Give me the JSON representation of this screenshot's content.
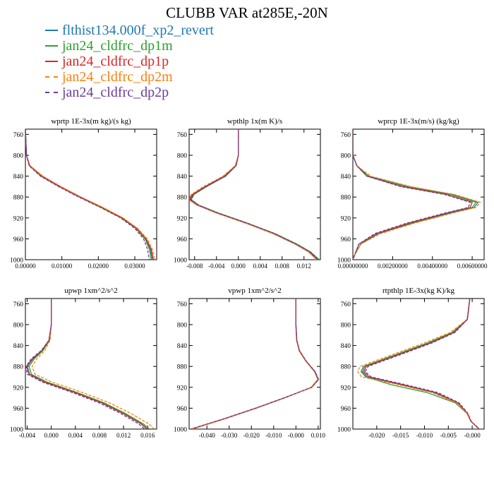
{
  "figure": {
    "title": "CLUBB VAR at285E,-20N",
    "legend": [
      {
        "label": "flthist134.000f_xp2_revert",
        "color": "#1f77b4",
        "dash": "solid"
      },
      {
        "label": "jan24_cldfrc_dp1m",
        "color": "#2ca02c",
        "dash": "solid"
      },
      {
        "label": "jan24_cldfrc_dp1p",
        "color": "#d62728",
        "dash": "solid"
      },
      {
        "label": "jan24_cldfrc_dp2m",
        "color": "#ff7f0e",
        "dash": "dashed"
      },
      {
        "label": "jan24_cldfrc_dp2p",
        "color": "#6a3d9a",
        "dash": "dashed"
      }
    ]
  },
  "chart_data": [
    {
      "type": "line",
      "title": "wprtp  1E-3x(m kg)/(s kg)",
      "xlim": [
        0.0,
        0.036
      ],
      "ylim": [
        750,
        1000
      ],
      "y_reversed": true,
      "xticks": [
        0.0,
        0.01,
        0.02,
        0.03
      ],
      "xtick_labels": [
        "0.00000",
        "0.01000",
        "0.02000",
        "0.03000"
      ],
      "yticks": [
        760,
        800,
        840,
        880,
        920,
        960,
        1000
      ],
      "ytick_labels": [
        "760",
        "800",
        "840",
        "880",
        "920",
        "960",
        "1000"
      ],
      "y": [
        750,
        800,
        820,
        840,
        860,
        880,
        900,
        920,
        940,
        960,
        980,
        1000
      ],
      "series": [
        {
          "x": [
            0.0,
            0.0003,
            0.0012,
            0.0045,
            0.0095,
            0.015,
            0.021,
            0.0265,
            0.0305,
            0.033,
            0.0343,
            0.0348
          ]
        },
        {
          "x": [
            0.0,
            0.0003,
            0.0011,
            0.0043,
            0.0093,
            0.0148,
            0.0208,
            0.0263,
            0.0303,
            0.0328,
            0.034,
            0.0345
          ]
        },
        {
          "x": [
            0.0,
            0.0003,
            0.0012,
            0.0046,
            0.0096,
            0.0151,
            0.0211,
            0.0266,
            0.0306,
            0.0331,
            0.0345,
            0.0351
          ]
        },
        {
          "x": [
            0.0,
            0.0003,
            0.0013,
            0.0048,
            0.0098,
            0.0153,
            0.0213,
            0.0268,
            0.0308,
            0.0334,
            0.0348,
            0.0355
          ]
        },
        {
          "x": [
            0.0,
            0.0003,
            0.001,
            0.0041,
            0.0091,
            0.0146,
            0.0206,
            0.0261,
            0.03,
            0.0324,
            0.0335,
            0.034
          ]
        }
      ]
    },
    {
      "type": "line",
      "title": "wpthlp  1x(m K)/s",
      "xlim": [
        -0.009,
        0.015
      ],
      "ylim": [
        750,
        1000
      ],
      "y_reversed": true,
      "xticks": [
        -0.008,
        -0.004,
        0.0,
        0.004,
        0.008,
        0.012
      ],
      "xtick_labels": [
        "-0.008",
        "-0.004",
        "0.000",
        "0.004",
        "0.008",
        "0.012"
      ],
      "yticks": [
        760,
        800,
        840,
        880,
        920,
        960,
        1000
      ],
      "ytick_labels": [
        "760",
        "800",
        "840",
        "880",
        "920",
        "960",
        "1000"
      ],
      "y": [
        750,
        800,
        820,
        840,
        860,
        875,
        885,
        895,
        910,
        930,
        950,
        970,
        985,
        1000
      ],
      "series": [
        {
          "x": [
            0.0,
            0.0,
            -0.0005,
            -0.0025,
            -0.006,
            -0.0083,
            -0.0088,
            -0.0075,
            -0.004,
            0.0015,
            0.0065,
            0.0105,
            0.013,
            0.0145
          ]
        },
        {
          "x": [
            0.0,
            0.0,
            -0.0004,
            -0.0023,
            -0.0058,
            -0.0081,
            -0.0086,
            -0.0073,
            -0.0038,
            0.0017,
            0.0067,
            0.0107,
            0.0132,
            0.0148
          ]
        },
        {
          "x": [
            0.0,
            0.0,
            -0.0005,
            -0.0026,
            -0.0061,
            -0.0084,
            -0.0089,
            -0.0076,
            -0.0041,
            0.0014,
            0.0064,
            0.0104,
            0.0129,
            0.0144
          ]
        },
        {
          "x": [
            0.0,
            0.0,
            -0.0006,
            -0.0028,
            -0.0064,
            -0.0086,
            -0.0091,
            -0.0077,
            -0.0042,
            0.0013,
            0.0063,
            0.0103,
            0.0128,
            0.0143
          ]
        },
        {
          "x": [
            0.0,
            0.0,
            -0.0004,
            -0.0024,
            -0.0059,
            -0.0082,
            -0.0087,
            -0.0074,
            -0.0039,
            0.0016,
            0.0066,
            0.0106,
            0.0131,
            0.0146
          ]
        }
      ]
    },
    {
      "type": "line",
      "title": "wprcp  1E-3x(m/s) (kg/kg)",
      "xlim": [
        0.0,
        0.0066
      ],
      "ylim": [
        750,
        1000
      ],
      "y_reversed": true,
      "xticks": [
        0.0,
        0.002,
        0.004,
        0.006
      ],
      "xtick_labels": [
        "0.00000000",
        "0.00200000",
        "0.00400000",
        "0.00600000"
      ],
      "yticks": [
        760,
        800,
        840,
        880,
        920,
        960,
        1000
      ],
      "ytick_labels": [
        "760",
        "800",
        "840",
        "880",
        "920",
        "960",
        "1000"
      ],
      "y": [
        750,
        800,
        820,
        840,
        860,
        875,
        890,
        900,
        910,
        930,
        950,
        970,
        990,
        1000
      ],
      "series": [
        {
          "x": [
            0.0,
            0.0,
            0.0002,
            0.0008,
            0.0028,
            0.005,
            0.0063,
            0.0061,
            0.005,
            0.003,
            0.0013,
            0.0004,
            0.0001,
            0.0
          ]
        },
        {
          "x": [
            0.0,
            0.0,
            0.0002,
            0.0008,
            0.0027,
            0.0049,
            0.0062,
            0.006,
            0.0049,
            0.0029,
            0.0012,
            0.0004,
            0.0001,
            0.0
          ]
        },
        {
          "x": [
            0.0,
            0.0,
            0.0002,
            0.0007,
            0.0025,
            0.0047,
            0.006,
            0.0059,
            0.0048,
            0.0028,
            0.0012,
            0.0003,
            0.0001,
            0.0
          ]
        },
        {
          "x": [
            0.0,
            0.0,
            0.0002,
            0.0009,
            0.0029,
            0.0051,
            0.0064,
            0.0062,
            0.0051,
            0.0031,
            0.0014,
            0.0004,
            0.0001,
            0.0
          ]
        },
        {
          "x": [
            0.0,
            0.0,
            0.0002,
            0.0007,
            0.0024,
            0.0046,
            0.0059,
            0.0058,
            0.0047,
            0.0027,
            0.0011,
            0.0003,
            0.0001,
            0.0
          ]
        }
      ]
    },
    {
      "type": "line",
      "title": "upwp  1xm^2/s^2",
      "xlim": [
        -0.0043,
        0.0175
      ],
      "ylim": [
        750,
        1000
      ],
      "y_reversed": true,
      "xticks": [
        -0.004,
        0.0,
        0.004,
        0.008,
        0.012,
        0.016
      ],
      "xtick_labels": [
        "-0.004",
        "0.000",
        "0.004",
        "0.008",
        "0.012",
        "0.016"
      ],
      "yticks": [
        760,
        800,
        840,
        880,
        920,
        960,
        1000
      ],
      "ytick_labels": [
        "760",
        "800",
        "840",
        "880",
        "920",
        "960",
        "1000"
      ],
      "y": [
        750,
        800,
        830,
        850,
        865,
        880,
        895,
        910,
        930,
        950,
        970,
        990,
        1000
      ],
      "series": [
        {
          "x": [
            0.0,
            0.0,
            -0.0003,
            -0.0015,
            -0.003,
            -0.004,
            -0.0036,
            -0.001,
            0.004,
            0.0085,
            0.012,
            0.015,
            0.016
          ]
        },
        {
          "x": [
            0.0,
            0.0,
            -0.0003,
            -0.0014,
            -0.0028,
            -0.0037,
            -0.0033,
            -0.0007,
            0.0043,
            0.0088,
            0.0123,
            0.0153,
            0.0163
          ]
        },
        {
          "x": [
            0.0,
            0.0,
            -0.0004,
            -0.0016,
            -0.0031,
            -0.0041,
            -0.0037,
            -0.0011,
            0.0039,
            0.0084,
            0.0119,
            0.0149,
            0.0159
          ]
        },
        {
          "x": [
            0.0,
            0.0,
            -0.0002,
            -0.0011,
            -0.0024,
            -0.0032,
            -0.0027,
            0.0001,
            0.0052,
            0.0097,
            0.0132,
            0.0162,
            0.0171
          ]
        },
        {
          "x": [
            0.0,
            0.0,
            -0.0004,
            -0.0017,
            -0.0033,
            -0.0042,
            -0.004,
            -0.0015,
            0.0035,
            0.008,
            0.0115,
            0.0145,
            0.0155
          ]
        }
      ]
    },
    {
      "type": "line",
      "title": "vpwp  1xm^2/s^2",
      "xlim": [
        -0.048,
        0.011
      ],
      "ylim": [
        750,
        1000
      ],
      "y_reversed": true,
      "xticks": [
        -0.04,
        -0.03,
        -0.02,
        -0.01,
        0.0,
        0.01
      ],
      "xtick_labels": [
        "-0.040",
        "-0.030",
        "-0.020",
        "-0.010",
        "-0.000",
        "0.010"
      ],
      "yticks": [
        760,
        800,
        840,
        880,
        920,
        960,
        1000
      ],
      "ytick_labels": [
        "760",
        "800",
        "840",
        "880",
        "920",
        "960",
        "1000"
      ],
      "y": [
        750,
        800,
        830,
        850,
        870,
        890,
        905,
        920,
        940,
        960,
        980,
        1000
      ],
      "series": [
        {
          "x": [
            0.0,
            0.0,
            0.0003,
            0.0015,
            0.0045,
            0.0085,
            0.01,
            0.007,
            -0.005,
            -0.018,
            -0.032,
            -0.047
          ]
        },
        {
          "x": [
            0.0,
            0.0,
            0.0003,
            0.0015,
            0.0045,
            0.0084,
            0.0099,
            0.0069,
            -0.0049,
            -0.0178,
            -0.0318,
            -0.0468
          ]
        },
        {
          "x": [
            0.0,
            0.0,
            0.0004,
            0.0016,
            0.0046,
            0.0086,
            0.0101,
            0.0071,
            -0.0051,
            -0.0181,
            -0.0321,
            -0.0471
          ]
        },
        {
          "x": [
            0.0,
            0.0,
            0.0003,
            0.0014,
            0.0044,
            0.0083,
            0.0098,
            0.0068,
            -0.0048,
            -0.0177,
            -0.0316,
            -0.0465
          ]
        },
        {
          "x": [
            0.0,
            0.0,
            0.0004,
            0.0016,
            0.0047,
            0.0087,
            0.0102,
            0.0072,
            -0.0052,
            -0.0182,
            -0.0322,
            -0.0472
          ]
        }
      ]
    },
    {
      "type": "line",
      "title": "rtpthlp  1E-3x(kg K)/kg",
      "xlim": [
        -0.025,
        0.0025
      ],
      "ylim": [
        750,
        1000
      ],
      "y_reversed": true,
      "xticks": [
        -0.02,
        -0.015,
        -0.01,
        -0.005,
        0.0
      ],
      "xtick_labels": [
        "-0.020",
        "-0.015",
        "-0.010",
        "-0.005",
        "-0.000"
      ],
      "yticks": [
        760,
        800,
        840,
        880,
        920,
        960,
        1000
      ],
      "ytick_labels": [
        "760",
        "800",
        "840",
        "880",
        "920",
        "960",
        "1000"
      ],
      "y": [
        750,
        790,
        815,
        835,
        855,
        870,
        880,
        890,
        900,
        915,
        930,
        950,
        970,
        985,
        1000
      ],
      "series": [
        {
          "x": [
            -0.0005,
            -0.001,
            -0.004,
            -0.009,
            -0.015,
            -0.0195,
            -0.0225,
            -0.023,
            -0.022,
            -0.015,
            -0.008,
            -0.003,
            -0.001,
            -0.0003,
            0.0015
          ]
        },
        {
          "x": [
            -0.0005,
            -0.001,
            -0.0042,
            -0.0093,
            -0.0153,
            -0.0198,
            -0.0228,
            -0.0233,
            -0.0223,
            -0.017,
            -0.0095,
            -0.0035,
            -0.0011,
            -0.0003,
            0.0015
          ]
        },
        {
          "x": [
            -0.0005,
            -0.001,
            -0.0038,
            -0.0087,
            -0.0147,
            -0.0192,
            -0.0222,
            -0.0227,
            -0.0216,
            -0.0145,
            -0.0077,
            -0.0029,
            -0.001,
            -0.0003,
            0.0015
          ]
        },
        {
          "x": [
            -0.0005,
            -0.0011,
            -0.0046,
            -0.01,
            -0.016,
            -0.0205,
            -0.0235,
            -0.024,
            -0.0232,
            -0.0155,
            -0.0085,
            -0.0032,
            -0.0011,
            -0.0003,
            0.0016
          ]
        },
        {
          "x": [
            -0.0005,
            -0.001,
            -0.0036,
            -0.0084,
            -0.0143,
            -0.0188,
            -0.0218,
            -0.0224,
            -0.0212,
            -0.014,
            -0.0072,
            -0.0027,
            -0.0009,
            -0.0002,
            0.0014
          ]
        }
      ]
    }
  ]
}
